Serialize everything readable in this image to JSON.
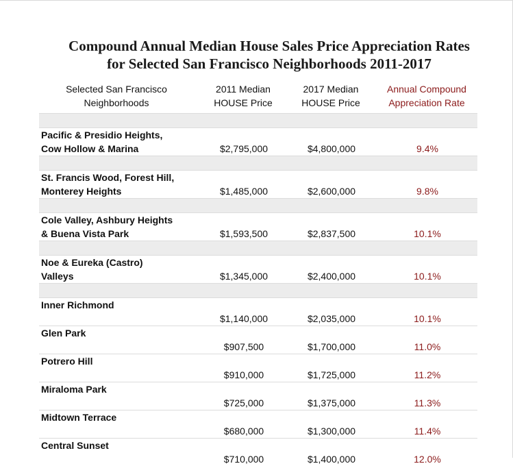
{
  "title": {
    "line1": "Compound Annual Median House Sales Price Appreciation Rates",
    "line2": "for Selected San Francisco Neighborhoods 2011-2017"
  },
  "headers": {
    "neighborhood": [
      "Selected San Francisco",
      "Neighborhoods"
    ],
    "price_2011": [
      "2011 Median",
      "HOUSE Price"
    ],
    "price_2017": [
      "2017 Median",
      "HOUSE Price"
    ],
    "rate": [
      "Annual Compound",
      "Appreciation Rate"
    ]
  },
  "colors": {
    "rate_text": "#8b1a1a",
    "spacer_bg": "#ececec"
  },
  "rows": [
    {
      "name": [
        "Pacific & Presidio Heights,",
        "Cow Hollow & Marina"
      ],
      "price_2011": "$2,795,000",
      "price_2017": "$4,800,000",
      "rate": "9.4%"
    },
    {
      "name": [
        "St. Francis Wood, Forest Hill,",
        "Monterey Heights"
      ],
      "price_2011": "$1,485,000",
      "price_2017": "$2,600,000",
      "rate": "9.8%"
    },
    {
      "name": [
        "Cole Valley, Ashbury Heights",
        "& Buena Vista Park"
      ],
      "price_2011": "$1,593,500",
      "price_2017": "$2,837,500",
      "rate": "10.1%"
    },
    {
      "name": [
        "Noe & Eureka (Castro)",
        "Valleys"
      ],
      "price_2011": "$1,345,000",
      "price_2017": "$2,400,000",
      "rate": "10.1%"
    },
    {
      "name": [
        "Inner Richmond"
      ],
      "price_2011": "$1,140,000",
      "price_2017": "$2,035,000",
      "rate": "10.1%"
    },
    {
      "name": [
        "Glen Park"
      ],
      "price_2011": "$907,500",
      "price_2017": "$1,700,000",
      "rate": "11.0%"
    },
    {
      "name": [
        "Potrero Hill"
      ],
      "price_2011": "$910,000",
      "price_2017": "$1,725,000",
      "rate": "11.2%"
    },
    {
      "name": [
        "Miraloma Park"
      ],
      "price_2011": "$725,000",
      "price_2017": "$1,375,000",
      "rate": "11.3%"
    },
    {
      "name": [
        "Midtown Terrace"
      ],
      "price_2011": "$680,000",
      "price_2017": "$1,300,000",
      "rate": "11.4%"
    },
    {
      "name": [
        "Central Sunset"
      ],
      "price_2011": "$710,000",
      "price_2017": "$1,400,000",
      "rate": "12.0%"
    }
  ]
}
